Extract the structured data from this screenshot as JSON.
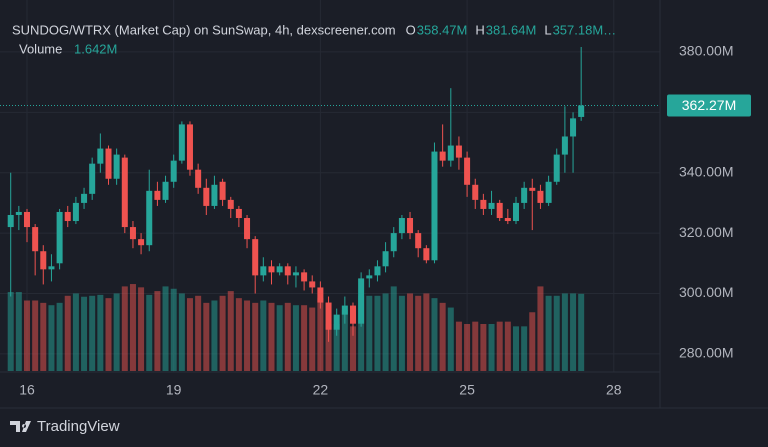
{
  "chart_data": {
    "type": "candlestick",
    "title": "SUNDOG/WTRX (Market Cap) on SunSwap, 4h, dexscreener.com",
    "ohlc_legend": [
      {
        "key": "O",
        "label": "358.47M"
      },
      {
        "key": "H",
        "label": "381.64M"
      },
      {
        "key": "L",
        "label": "357.18M…"
      }
    ],
    "volume_title": "Volume",
    "volume_label": "1.642M",
    "last_price_label": "362.27M",
    "brand": "TradingView",
    "up_color": "#26a69a",
    "down_color": "#ef5350",
    "grid": true,
    "xlim": [
      15.448,
      28.945
    ],
    "xticks": [
      16,
      19,
      22,
      25,
      28
    ],
    "ylim": [
      274,
      397.2
    ],
    "yticks": [
      {
        "value": 280,
        "label": "280.00M"
      },
      {
        "value": 300,
        "label": "300.00M"
      },
      {
        "value": 320,
        "label": "320.00M"
      },
      {
        "value": 340,
        "label": "340.00M"
      },
      {
        "value": 360,
        "label": "360.00M"
      },
      {
        "value": 380,
        "label": "380.00M"
      }
    ],
    "x": [
      15.667,
      15.833,
      16,
      16.167,
      16.333,
      16.5,
      16.667,
      16.833,
      17,
      17.167,
      17.333,
      17.5,
      17.667,
      17.833,
      18,
      18.167,
      18.333,
      18.5,
      18.667,
      18.833,
      19,
      19.167,
      19.333,
      19.5,
      19.667,
      19.833,
      20,
      20.167,
      20.333,
      20.5,
      20.667,
      20.833,
      21,
      21.167,
      21.333,
      21.5,
      21.667,
      21.833,
      22,
      22.167,
      22.333,
      22.5,
      22.667,
      22.833,
      23,
      23.167,
      23.333,
      23.5,
      23.667,
      23.833,
      24,
      24.167,
      24.333,
      24.5,
      24.667,
      24.833,
      25,
      25.167,
      25.333,
      25.5,
      25.667,
      25.833,
      26,
      26.167,
      26.333,
      26.5,
      26.667,
      26.833,
      27,
      27.167,
      27.333
    ],
    "open": [
      322,
      326,
      327,
      322,
      314,
      308,
      310,
      327,
      324,
      330,
      333,
      343,
      348,
      338,
      345,
      322,
      318,
      316,
      334,
      331,
      337,
      344,
      356,
      341,
      335,
      329,
      337,
      331,
      328,
      325,
      318,
      306,
      309,
      307,
      309,
      306,
      307,
      304,
      302,
      297,
      288,
      293,
      296,
      290,
      305,
      306,
      309,
      314,
      320,
      325,
      320,
      315,
      311,
      347,
      344,
      349,
      345,
      336,
      331,
      328,
      330,
      325,
      324,
      330,
      335,
      334,
      330,
      337,
      346,
      352,
      358.47
    ],
    "high": [
      340,
      329,
      328,
      323,
      316,
      313,
      328,
      329,
      332,
      335,
      345,
      353,
      349,
      348,
      346,
      324,
      320,
      341,
      337,
      339,
      346,
      357,
      357,
      343,
      338,
      339,
      338,
      332,
      329,
      326,
      319,
      312,
      311,
      310,
      310,
      309,
      308,
      306,
      304,
      299,
      295,
      299,
      297,
      307,
      308,
      311,
      317,
      322,
      326,
      327,
      321,
      316,
      350,
      356,
      368,
      352,
      347,
      338,
      333,
      334,
      331,
      328,
      332,
      337,
      338,
      336,
      339,
      348,
      362,
      360,
      381.64
    ],
    "low": [
      299,
      321,
      317,
      306,
      303,
      304,
      308,
      322,
      323,
      328,
      331,
      340,
      336,
      336,
      320,
      315,
      313,
      314,
      329,
      330,
      335,
      343,
      339,
      333,
      326,
      328,
      329,
      325,
      322,
      315,
      300,
      304,
      303,
      306,
      303,
      302,
      301,
      300,
      295,
      284,
      286,
      290,
      286,
      289,
      302,
      304,
      307,
      312,
      318,
      318,
      312,
      310,
      310,
      342,
      342,
      341,
      332,
      328,
      326,
      326,
      324,
      323,
      323,
      328,
      321,
      328,
      329,
      336,
      340,
      340,
      357.18
    ],
    "close": [
      326,
      327,
      322,
      314,
      308,
      309,
      327,
      324,
      330,
      333,
      343,
      348,
      338,
      346,
      322,
      318,
      316,
      334,
      331,
      337,
      344,
      356,
      341,
      335,
      329,
      336,
      331,
      328,
      325,
      318,
      306,
      309,
      307,
      309,
      306,
      307,
      304,
      302,
      297,
      288,
      293,
      296,
      290,
      305,
      306,
      309,
      314,
      320,
      325,
      320,
      315,
      311,
      347,
      344,
      349,
      345,
      336,
      331,
      328,
      330,
      325,
      324,
      330,
      335,
      334,
      330,
      337,
      346,
      352,
      358,
      362.27
    ],
    "volume": [
      1.68,
      1.68,
      1.5,
      1.5,
      1.45,
      1.4,
      1.45,
      1.6,
      1.65,
      1.58,
      1.6,
      1.62,
      1.55,
      1.65,
      1.8,
      1.85,
      1.78,
      1.62,
      1.7,
      1.8,
      1.75,
      1.65,
      1.55,
      1.6,
      1.45,
      1.5,
      1.6,
      1.7,
      1.55,
      1.5,
      1.45,
      1.5,
      1.45,
      1.4,
      1.45,
      1.4,
      1.4,
      1.35,
      1.55,
      1.0,
      1.0,
      1.3,
      0.95,
      1.6,
      1.6,
      1.6,
      1.65,
      1.8,
      1.6,
      1.65,
      1.6,
      1.65,
      1.55,
      1.45,
      1.35,
      1.05,
      1.0,
      1.05,
      1.0,
      1.0,
      1.05,
      1.05,
      0.95,
      0.95,
      1.25,
      1.8,
      1.6,
      1.6,
      1.65,
      1.65,
      1.642
    ]
  }
}
